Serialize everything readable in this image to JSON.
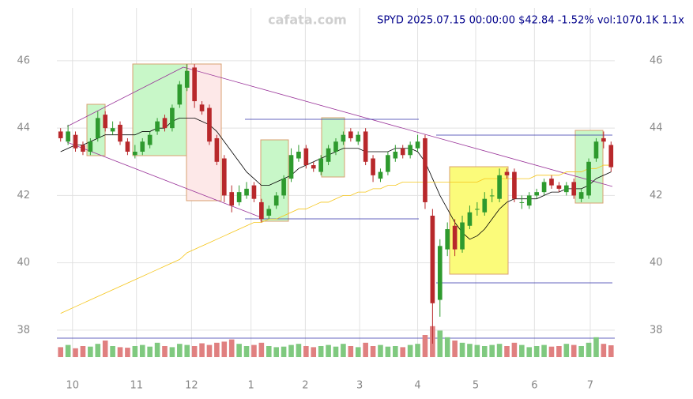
{
  "chart_data": {
    "type": "candlestick",
    "title": "SPYD 2025.07.15 00:00:00 $42.84 -1.52% vol:1070.1K 1.1x",
    "watermark": "cafata.com",
    "open": [
      43.9,
      43.6,
      43.8,
      43.5,
      43.3,
      43.7,
      44.4,
      43.9,
      44.1,
      43.6,
      43.2,
      43.3,
      43.5,
      43.9,
      44.3,
      44.0,
      44.7,
      45.2,
      45.8,
      44.7,
      44.6,
      43.7,
      43.1,
      42.1,
      41.8,
      42.0,
      42.3,
      41.8,
      41.4,
      41.7,
      42.0,
      42.5,
      43.1,
      43.4,
      42.9,
      42.7,
      43.0,
      43.3,
      43.6,
      43.9,
      43.6,
      43.9,
      43.1,
      42.5,
      42.7,
      43.1,
      43.4,
      43.2,
      43.4,
      43.7,
      41.4,
      38.9,
      40.4,
      41.1,
      40.4,
      41.1,
      41.6,
      41.5,
      42.0,
      41.9,
      42.7,
      42.7,
      41.8,
      41.7,
      42.0,
      42.1,
      42.5,
      42.3,
      42.1,
      42.4,
      41.9,
      42.0,
      43.1,
      43.7,
      43.5
    ],
    "high": [
      44.0,
      44.1,
      43.9,
      43.6,
      43.7,
      44.5,
      44.5,
      44.2,
      44.2,
      43.7,
      43.5,
      43.7,
      43.9,
      44.3,
      44.4,
      44.7,
      45.4,
      45.9,
      45.9,
      44.8,
      44.7,
      43.8,
      43.2,
      42.3,
      42.3,
      42.4,
      42.4,
      41.9,
      41.7,
      42.1,
      42.6,
      43.4,
      43.5,
      43.5,
      43.0,
      43.2,
      43.5,
      43.7,
      43.9,
      44.0,
      43.9,
      44.0,
      43.2,
      42.8,
      43.3,
      43.5,
      43.5,
      43.6,
      43.8,
      43.8,
      41.6,
      40.7,
      41.2,
      41.3,
      41.4,
      41.7,
      41.8,
      42.1,
      42.2,
      42.8,
      42.8,
      42.8,
      42.0,
      42.1,
      42.2,
      42.5,
      42.6,
      42.4,
      42.4,
      42.5,
      42.2,
      43.1,
      43.7,
      43.9,
      43.6
    ],
    "low": [
      43.6,
      43.5,
      43.3,
      43.2,
      43.2,
      43.6,
      43.9,
      43.8,
      43.5,
      43.2,
      43.1,
      43.2,
      43.4,
      43.8,
      43.9,
      43.9,
      44.6,
      45.1,
      44.6,
      44.4,
      43.5,
      42.9,
      41.8,
      41.5,
      41.7,
      41.9,
      41.8,
      41.2,
      41.3,
      41.6,
      41.9,
      42.4,
      43.0,
      42.8,
      42.7,
      42.6,
      42.9,
      43.2,
      43.5,
      43.6,
      43.5,
      42.9,
      42.4,
      42.4,
      42.6,
      43.0,
      43.1,
      43.1,
      43.3,
      41.6,
      37.6,
      38.4,
      40.2,
      40.2,
      40.3,
      41.0,
      41.4,
      41.4,
      41.8,
      41.8,
      42.5,
      41.8,
      41.6,
      41.6,
      41.9,
      42.0,
      42.2,
      42.1,
      42.0,
      41.9,
      41.8,
      41.9,
      43.0,
      43.4,
      42.7
    ],
    "close": [
      43.7,
      43.9,
      43.4,
      43.3,
      43.6,
      44.3,
      44.0,
      44.0,
      43.6,
      43.3,
      43.3,
      43.6,
      43.8,
      44.2,
      44.0,
      44.6,
      45.3,
      45.7,
      44.8,
      44.5,
      43.6,
      43.0,
      42.0,
      41.7,
      42.1,
      42.2,
      41.9,
      41.3,
      41.6,
      42.0,
      42.5,
      43.2,
      43.3,
      42.9,
      42.8,
      43.1,
      43.4,
      43.6,
      43.8,
      43.7,
      43.8,
      43.0,
      42.6,
      42.7,
      43.2,
      43.3,
      43.2,
      43.5,
      43.6,
      41.8,
      38.8,
      40.5,
      41.0,
      40.4,
      41.2,
      41.5,
      41.6,
      41.9,
      42.0,
      42.6,
      42.6,
      41.9,
      41.8,
      42.0,
      42.1,
      42.4,
      42.3,
      42.2,
      42.3,
      42.0,
      42.1,
      43.0,
      43.6,
      43.6,
      42.84
    ],
    "volume": [
      900,
      1100,
      800,
      1000,
      950,
      1200,
      1500,
      1000,
      900,
      850,
      1000,
      1100,
      950,
      1300,
      1000,
      900,
      1200,
      1100,
      1000,
      1250,
      1100,
      1300,
      1400,
      1600,
      1200,
      1000,
      1100,
      1300,
      1000,
      900,
      950,
      1100,
      1200,
      1000,
      900,
      1000,
      1100,
      950,
      1200,
      1000,
      900,
      1300,
      1000,
      1100,
      950,
      1000,
      900,
      1100,
      1200,
      2000,
      2800,
      2400,
      1800,
      1500,
      1300,
      1200,
      1100,
      1000,
      1100,
      1200,
      1000,
      1300,
      1100,
      900,
      1000,
      1100,
      950,
      1000,
      1200,
      1100,
      1000,
      1300,
      1800,
      1200,
      1070.1
    ],
    "volume_lim": [
      0,
      3000
    ],
    "series": [
      {
        "color": "#000000",
        "values": [
          43.3,
          43.4,
          43.5,
          43.5,
          43.6,
          43.7,
          43.8,
          43.8,
          43.8,
          43.8,
          43.8,
          43.9,
          43.9,
          44.0,
          44.0,
          44.2,
          44.3,
          44.3,
          44.3,
          44.2,
          44.1,
          43.9,
          43.6,
          43.3,
          43.0,
          42.7,
          42.5,
          42.3,
          42.3,
          42.4,
          42.5,
          42.6,
          42.8,
          42.9,
          43.0,
          43.1,
          43.2,
          43.3,
          43.4,
          43.4,
          43.4,
          43.3,
          43.3,
          43.3,
          43.3,
          43.4,
          43.4,
          43.4,
          43.3,
          43.0,
          42.5,
          42.0,
          41.6,
          41.2,
          40.9,
          40.7,
          40.8,
          41.0,
          41.3,
          41.6,
          41.8,
          41.9,
          41.9,
          41.9,
          41.9,
          42.0,
          42.1,
          42.1,
          42.2,
          42.2,
          42.2,
          42.3,
          42.5,
          42.6,
          42.7
        ]
      },
      {
        "color": "#f5c518",
        "values": [
          38.5,
          38.6,
          38.7,
          38.8,
          38.9,
          39.0,
          39.1,
          39.2,
          39.3,
          39.4,
          39.5,
          39.6,
          39.7,
          39.8,
          39.9,
          40.0,
          40.1,
          40.3,
          40.4,
          40.5,
          40.6,
          40.7,
          40.8,
          40.9,
          41.0,
          41.1,
          41.2,
          41.2,
          41.3,
          41.3,
          41.4,
          41.5,
          41.6,
          41.6,
          41.7,
          41.8,
          41.8,
          41.9,
          42.0,
          42.0,
          42.1,
          42.1,
          42.2,
          42.2,
          42.3,
          42.3,
          42.4,
          42.4,
          42.4,
          42.4,
          42.4,
          42.4,
          42.4,
          42.4,
          42.4,
          42.4,
          42.4,
          42.5,
          42.5,
          42.5,
          42.5,
          42.5,
          42.5,
          42.5,
          42.6,
          42.6,
          42.6,
          42.6,
          42.7,
          42.7,
          42.7,
          42.8,
          42.8,
          42.9,
          42.9
        ]
      }
    ],
    "up_color": "#2e9a2e",
    "down_color": "#b8282b",
    "xlim": [
      -0.5,
      74.5
    ],
    "xticks": [
      {
        "value": 1.6,
        "label": "10"
      },
      {
        "value": 10.2,
        "label": "11"
      },
      {
        "value": 17.6,
        "label": "12"
      },
      {
        "value": 25.6,
        "label": "1"
      },
      {
        "value": 32.9,
        "label": "2"
      },
      {
        "value": 40.2,
        "label": "3"
      },
      {
        "value": 48.0,
        "label": "4"
      },
      {
        "value": 55.8,
        "label": "5"
      },
      {
        "value": 63.7,
        "label": "6"
      },
      {
        "value": 71.2,
        "label": "7"
      }
    ],
    "ylim": [
      37.2,
      47.57
    ],
    "yticks": [
      38,
      40,
      42,
      44,
      46
    ],
    "grid": true
  }
}
